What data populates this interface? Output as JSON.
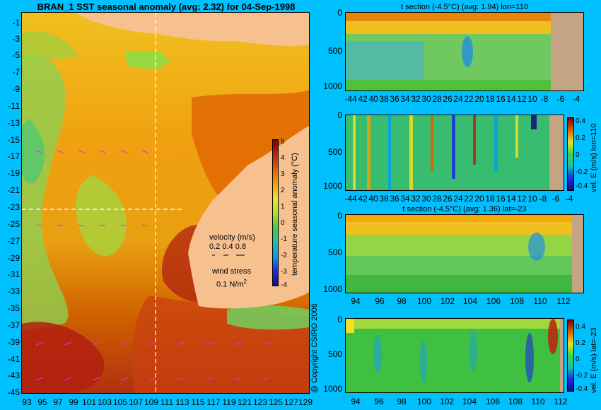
{
  "page": {
    "title": "BRAN_1  SST seasonal anomaly  (avg: 2.32)  for 04-Sep-1998",
    "copyright": "@ Copyright CSIRO 2006"
  },
  "map": {
    "y_ticks": [
      "-1",
      "-3",
      "-5",
      "-7",
      "-9",
      "-11",
      "-13",
      "-15",
      "-17",
      "-19",
      "-21",
      "-23",
      "-25",
      "-27",
      "-29",
      "-31",
      "-33",
      "-35",
      "-37",
      "-39",
      "-41",
      "-43",
      "-45"
    ],
    "x_ticks": [
      "93",
      "95",
      "97",
      "99",
      "101",
      "103",
      "105",
      "107",
      "109",
      "111",
      "113",
      "115",
      "117",
      "119",
      "121",
      "123",
      "125",
      "127",
      "129"
    ],
    "colorbar_ticks": [
      "5",
      "4",
      "3",
      "2",
      "1",
      "0",
      "-1",
      "-2",
      "-3",
      "-4"
    ],
    "colorbar_label": "temperature seasonal anomaly (°C)",
    "velocity_label": "velocity (m/s)",
    "velocity_scale": "0.2 0.4 0.8",
    "wind_label": "wind stress",
    "wind_scale": "0.1 N/m",
    "wind_scale_sup": "2"
  },
  "colors": {
    "background": "#00c0ff",
    "land": "#f7c08f",
    "section_land": "#c4a482",
    "anomaly_scale": [
      "#1a0a80",
      "#1a2ce0",
      "#00a0f0",
      "#20c0a0",
      "#40d040",
      "#b0e030",
      "#f0e020",
      "#f4a000",
      "#e06000",
      "#c02010",
      "#800000"
    ]
  },
  "chart_data": [
    {
      "type": "heatmap",
      "title": "BRAN_1  SST seasonal anomaly  (avg: 2.32)  for 04-Sep-1998",
      "xlim": [
        93,
        130
      ],
      "ylim": [
        -45,
        0
      ],
      "x_ticks": [
        93,
        95,
        97,
        99,
        101,
        103,
        105,
        107,
        109,
        111,
        113,
        115,
        117,
        119,
        121,
        123,
        125,
        127,
        129
      ],
      "y_ticks": [
        -1,
        -3,
        -5,
        -7,
        -9,
        -11,
        -13,
        -15,
        -17,
        -19,
        -21,
        -23,
        -25,
        -27,
        -29,
        -31,
        -33,
        -35,
        -37,
        -39,
        -41,
        -43,
        -45
      ],
      "color_range": [
        -4,
        5
      ],
      "section_lines": {
        "lon": 110,
        "lat": -23
      }
    },
    {
      "type": "heatmap",
      "title": "t section (-4.5°C) (avg: 1.94) lon=110",
      "x_ticks": [
        -44,
        -42,
        -40,
        -38,
        -36,
        -34,
        -32,
        -30,
        -28,
        -26,
        -24,
        -22,
        -20,
        -18,
        -16,
        -14,
        -12,
        -10,
        -8,
        -6,
        -4
      ],
      "x_tick_labels": [
        "-44",
        "42",
        "40",
        "38",
        "36",
        "34",
        "32",
        "30",
        "28",
        "26",
        "24",
        "22",
        "20",
        "18",
        "16",
        "14",
        "12",
        "10",
        "-8",
        "-6",
        "-4"
      ],
      "y_ticks": [
        0,
        500,
        1000
      ]
    },
    {
      "type": "heatmap",
      "title": "",
      "colorbar_label": "vel. E (m/s) lon=110",
      "colorbar_ticks": [
        "0.4",
        "0.2",
        "0",
        "-0.2",
        "-0.4"
      ],
      "color_range": [
        -0.4,
        0.4
      ],
      "x_ticks": [
        -44,
        -42,
        -40,
        -38,
        -36,
        -34,
        -32,
        -30,
        -28,
        -26,
        -24,
        -22,
        -20,
        -18,
        -16,
        -14,
        -12,
        -10,
        -8,
        -6,
        -4
      ],
      "x_tick_labels": [
        "-44",
        "42",
        "40",
        "38",
        "36",
        "34",
        "32",
        "30",
        "28",
        "26",
        "24",
        "22",
        "20",
        "18",
        "16",
        "14",
        "12",
        "10",
        "-8",
        "-6",
        "-4"
      ],
      "y_ticks": [
        0,
        500,
        1000
      ]
    },
    {
      "type": "heatmap",
      "title": "t section (-4.5°C) (avg: 1.36) lat=-23",
      "x_ticks": [
        94,
        96,
        98,
        100,
        102,
        104,
        106,
        108,
        110,
        112
      ],
      "y_ticks": [
        0,
        500,
        1000
      ]
    },
    {
      "type": "heatmap",
      "title": "",
      "colorbar_label": "vel. E (m/s) lat=-23",
      "colorbar_ticks": [
        "0.4",
        "0.2",
        "0",
        "-0.2",
        "-0.4"
      ],
      "color_range": [
        -0.4,
        0.4
      ],
      "x_ticks": [
        94,
        96,
        98,
        100,
        102,
        104,
        106,
        108,
        110,
        112
      ],
      "y_ticks": [
        0,
        500,
        1000
      ]
    }
  ]
}
